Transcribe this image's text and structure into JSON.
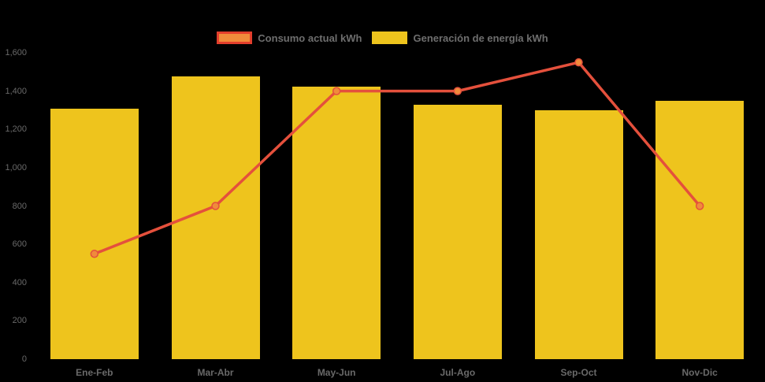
{
  "colors": {
    "background": "#000000",
    "bar": "#EEC41D",
    "line": "#E4503C",
    "marker_fill": "#F08B3B",
    "legend_border": "#E33E2C",
    "axis_text": "#696969",
    "legend_text": "#6E6E6E"
  },
  "legend": {
    "items": [
      {
        "label": "Consumo actual kWh",
        "swatch_fill": "#F08B3B",
        "swatch_border": "#E33E2C",
        "series": "line"
      },
      {
        "label": "Generación de energía kWh",
        "swatch_fill": "#EEC41D",
        "swatch_border": "#EEC41D",
        "series": "bar"
      }
    ]
  },
  "chart_data": {
    "type": "combo",
    "categories": [
      "Ene-Feb",
      "Mar-Abr",
      "May-Jun",
      "Jul-Ago",
      "Sep-Oct",
      "Nov-Dic"
    ],
    "series": [
      {
        "name": "Generación de energía kWh",
        "type": "bar",
        "color": "#EEC41D",
        "values": [
          1310,
          1475,
          1425,
          1330,
          1300,
          1350
        ]
      },
      {
        "name": "Consumo actual kWh",
        "type": "line",
        "color": "#E4503C",
        "marker_color": "#F08B3B",
        "values": [
          550,
          800,
          1400,
          1400,
          1550,
          800
        ]
      }
    ],
    "ylim": [
      0,
      1600
    ],
    "ytick_step": 200,
    "ytick_labels": [
      "0",
      "200",
      "400",
      "600",
      "800",
      "1,000",
      "1,200",
      "1,400",
      "1,600"
    ],
    "grid": false,
    "legend_position": "top-center",
    "title": "",
    "xlabel": "",
    "ylabel": ""
  }
}
